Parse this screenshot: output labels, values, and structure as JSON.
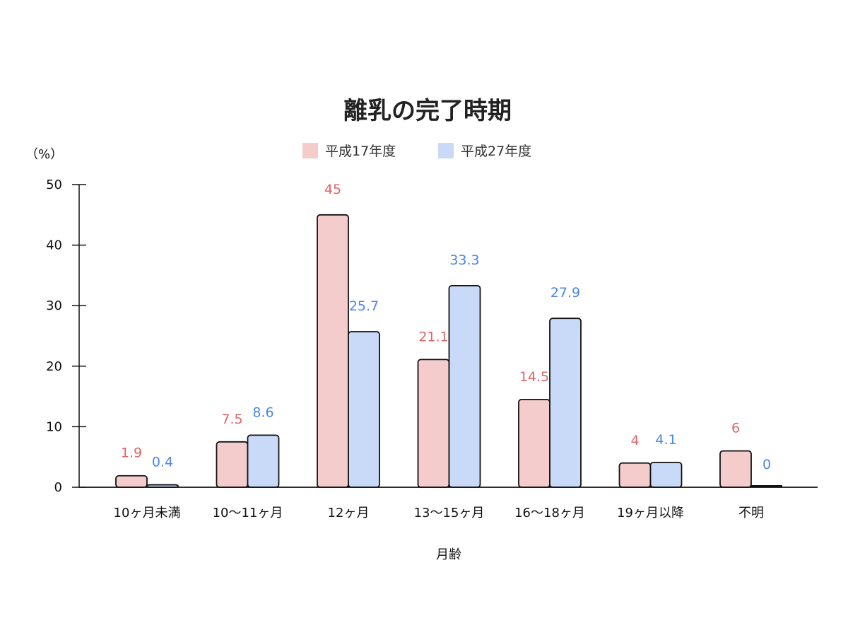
{
  "chart_data": {
    "type": "bar",
    "title": "離乳の完了時期",
    "ylabel": "（%）",
    "xlabel": "月齢",
    "ylim": [
      0,
      50
    ],
    "yticks": [
      0,
      10,
      20,
      30,
      40,
      50
    ],
    "categories": [
      "10ヶ月未満",
      "10〜11ヶ月",
      "12ヶ月",
      "13〜15ヶ月",
      "16〜18ヶ月",
      "19ヶ月以降",
      "不明"
    ],
    "series": [
      {
        "name": "平成17年度",
        "values": [
          1.9,
          7.5,
          45,
          21.1,
          14.5,
          4,
          6
        ],
        "color": "#f4cccc",
        "label_color": "#e06666"
      },
      {
        "name": "平成27年度",
        "values": [
          0.4,
          8.6,
          25.7,
          33.3,
          27.9,
          4.1,
          0
        ],
        "color": "#c9daf8",
        "label_color": "#4a86e8"
      }
    ],
    "legend_position": "top-center",
    "grid": false
  }
}
